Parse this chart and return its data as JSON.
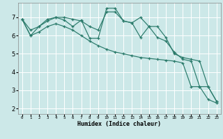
{
  "xlabel": "Humidex (Indice chaleur)",
  "background_color": "#cce8e8",
  "grid_color": "#ffffff",
  "line_color": "#2a7a6a",
  "xlim": [
    -0.5,
    23.5
  ],
  "ylim": [
    1.7,
    7.8
  ],
  "xticks": [
    0,
    1,
    2,
    3,
    4,
    5,
    6,
    7,
    8,
    9,
    10,
    11,
    12,
    13,
    14,
    15,
    16,
    17,
    18,
    19,
    20,
    21,
    22,
    23
  ],
  "yticks": [
    2,
    3,
    4,
    5,
    6,
    7
  ],
  "series1_x": [
    0,
    1,
    2,
    3,
    4,
    5,
    6,
    7,
    8,
    9,
    10,
    11,
    12,
    13,
    14,
    15,
    16,
    17,
    18,
    19,
    20,
    21,
    22,
    23
  ],
  "series1_y": [
    6.9,
    6.0,
    6.2,
    6.5,
    6.65,
    6.5,
    6.3,
    6.0,
    5.7,
    5.45,
    5.25,
    5.1,
    5.0,
    4.9,
    4.8,
    4.75,
    4.7,
    4.65,
    4.6,
    4.5,
    3.2,
    3.2,
    2.5,
    2.3
  ],
  "series2_x": [
    0,
    1,
    2,
    3,
    4,
    5,
    6,
    7,
    8,
    9,
    10,
    11,
    12,
    13,
    14,
    15,
    16,
    17,
    18,
    19,
    20,
    21,
    22,
    23
  ],
  "series2_y": [
    6.9,
    6.0,
    6.5,
    6.9,
    7.0,
    7.0,
    6.9,
    6.8,
    6.5,
    6.3,
    7.3,
    7.3,
    6.8,
    6.7,
    7.0,
    6.5,
    6.5,
    5.9,
    5.0,
    4.8,
    4.7,
    4.6,
    3.2,
    2.4
  ],
  "series3_x": [
    0,
    1,
    2,
    3,
    4,
    5,
    6,
    7,
    8,
    9,
    10,
    11,
    12,
    13,
    14,
    15,
    16,
    17,
    18,
    19,
    20,
    21,
    22,
    23
  ],
  "series3_y": [
    6.9,
    6.3,
    6.5,
    6.8,
    7.0,
    6.85,
    6.5,
    6.85,
    5.85,
    5.85,
    7.5,
    7.5,
    6.8,
    6.7,
    5.9,
    6.5,
    5.9,
    5.7,
    5.1,
    4.7,
    4.6,
    3.2,
    3.2,
    2.4
  ]
}
